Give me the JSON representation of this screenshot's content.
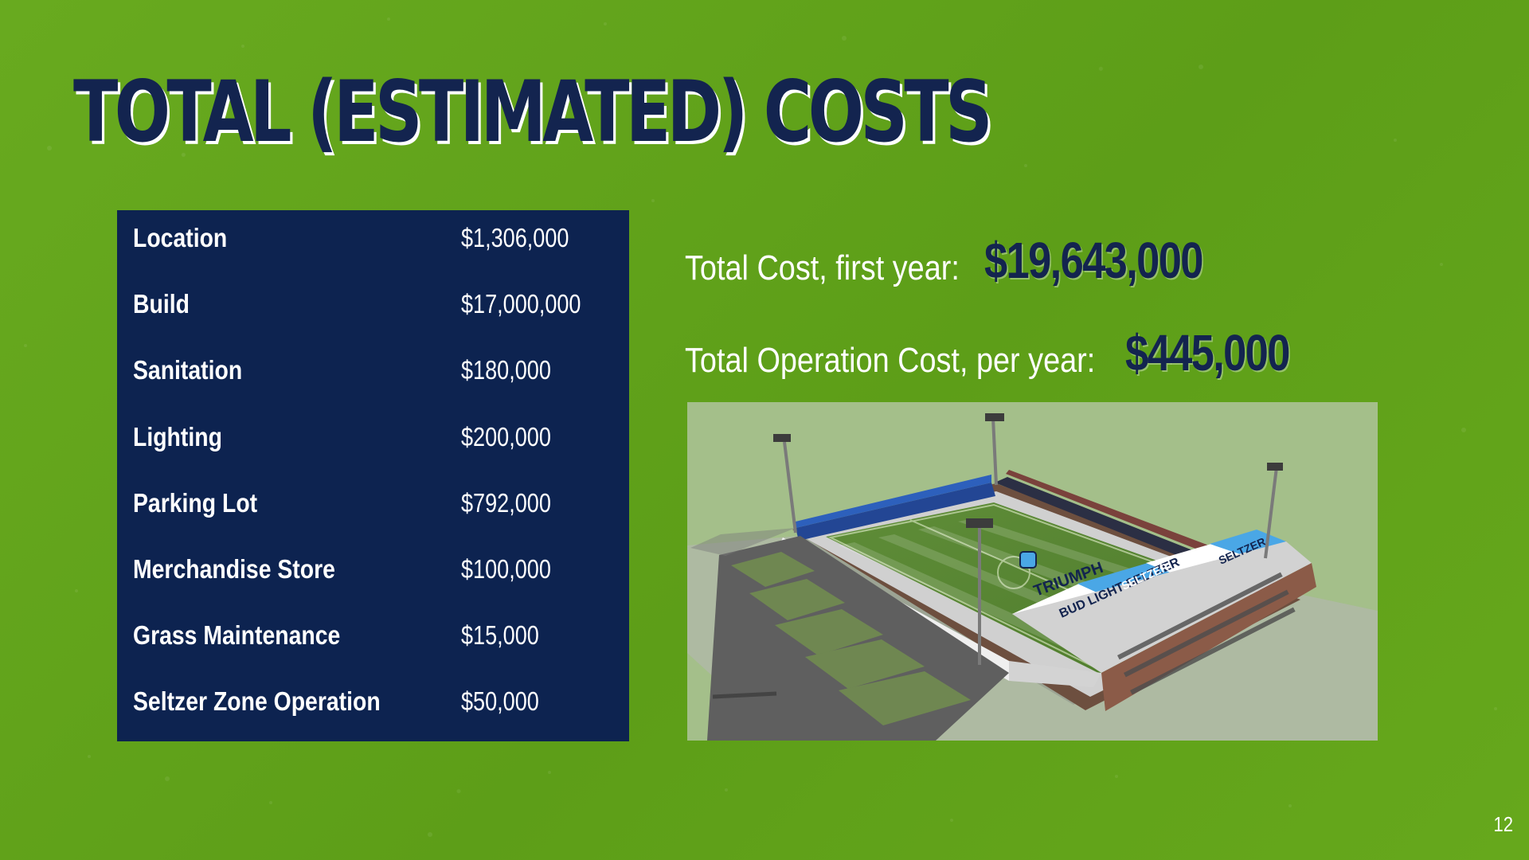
{
  "slide": {
    "title": "TOTAL (ESTIMATED) COSTS",
    "page_number": "12"
  },
  "cost_table": {
    "rows": [
      {
        "label": "Location",
        "value": "$1,306,000"
      },
      {
        "label": "Build",
        "value": "$17,000,000"
      },
      {
        "label": "Sanitation",
        "value": "$180,000"
      },
      {
        "label": "Lighting",
        "value": "$200,000"
      },
      {
        "label": "Parking Lot",
        "value": "$792,000"
      },
      {
        "label": "Merchandise Store",
        "value": "$100,000"
      },
      {
        "label": "Grass Maintenance",
        "value": "$15,000"
      },
      {
        "label": "Seltzer Zone Operation",
        "value": "$50,000"
      }
    ]
  },
  "summary": {
    "first_year_label": "Total Cost, first year:",
    "first_year_value": "$19,643,000",
    "operation_label": "Total Operation Cost, per year:",
    "operation_value": "$445,000"
  },
  "stadium_image": {
    "icon": "stadium-rendering",
    "banner_text_1": "BUD LIGHT SELTZER",
    "banner_text_2": "SELTZER",
    "banner_text_3": "TRIUMPH"
  },
  "colors": {
    "background": "#62a51a",
    "navy": "#0d2350",
    "white": "#ffffff",
    "sky_blue": "#4aa7e6"
  }
}
